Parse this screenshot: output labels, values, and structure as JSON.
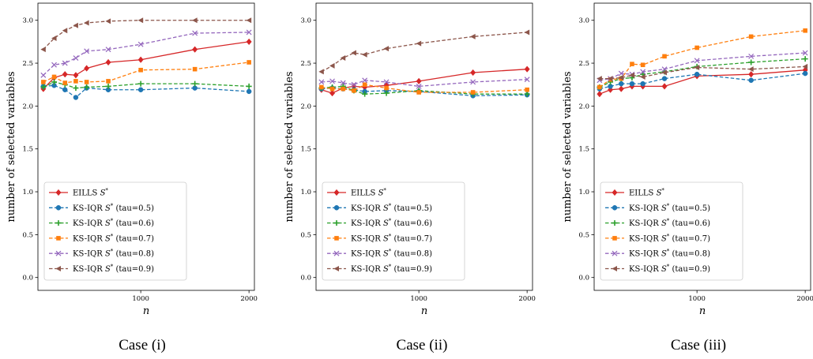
{
  "common": {
    "ylabel": "number of selected variables",
    "xlabel": "n",
    "xticks": [
      1000,
      2000
    ],
    "yticks": [
      "0.0",
      "0.5",
      "1.0",
      "1.5",
      "2.0",
      "2.5",
      "3.0"
    ],
    "legend_prefix": "KS-IQR",
    "colors": {
      "EILLS": "#d62728",
      "tau05": "#1f77b4",
      "tau06": "#2ca02c",
      "tau07": "#ff7f0e",
      "tau08": "#9467bd",
      "tau09": "#8c564b"
    }
  },
  "chart_data": [
    {
      "type": "line",
      "caption": "Case (i)",
      "xlabel": "n",
      "ylabel": "number of selected variables",
      "xlim": [
        50,
        2050
      ],
      "ylim": [
        -0.15,
        3.2
      ],
      "legend_position": "lower-left",
      "x": [
        100,
        200,
        300,
        400,
        500,
        700,
        1000,
        1500,
        2000
      ],
      "series": [
        {
          "name": "EILLS S*",
          "style": "solid",
          "marker": "diamond",
          "color": "#d62728",
          "values": [
            2.2,
            2.33,
            2.37,
            2.36,
            2.44,
            2.51,
            2.54,
            2.66,
            2.75
          ]
        },
        {
          "name": "KS-IQR S* (tau=0.5)",
          "style": "dashed",
          "marker": "circle",
          "color": "#1f77b4",
          "values": [
            2.23,
            2.24,
            2.19,
            2.1,
            2.21,
            2.19,
            2.19,
            2.21,
            2.17
          ]
        },
        {
          "name": "KS-IQR S* (tau=0.6)",
          "style": "dashed",
          "marker": "plus",
          "color": "#2ca02c",
          "values": [
            2.22,
            2.28,
            2.25,
            2.21,
            2.22,
            2.23,
            2.26,
            2.26,
            2.23
          ]
        },
        {
          "name": "KS-IQR S* (tau=0.7)",
          "style": "dashed",
          "marker": "square",
          "color": "#ff7f0e",
          "values": [
            2.28,
            2.34,
            2.27,
            2.29,
            2.28,
            2.29,
            2.42,
            2.43,
            2.51
          ]
        },
        {
          "name": "KS-IQR S* (tau=0.8)",
          "style": "dashed",
          "marker": "x",
          "color": "#9467bd",
          "values": [
            2.36,
            2.48,
            2.5,
            2.56,
            2.64,
            2.66,
            2.72,
            2.85,
            2.86
          ]
        },
        {
          "name": "KS-IQR S* (tau=0.9)",
          "style": "dashed",
          "marker": "triangle-left",
          "color": "#8c564b",
          "values": [
            2.66,
            2.79,
            2.88,
            2.94,
            2.97,
            2.99,
            3.0,
            3.0,
            3.0
          ]
        }
      ]
    },
    {
      "type": "line",
      "caption": "Case (ii)",
      "xlabel": "n",
      "ylabel": "number of selected variables",
      "xlim": [
        50,
        2050
      ],
      "ylim": [
        -0.15,
        3.2
      ],
      "legend_position": "lower-left",
      "x": [
        100,
        200,
        300,
        400,
        500,
        700,
        1000,
        1500,
        2000
      ],
      "series": [
        {
          "name": "EILLS S*",
          "style": "solid",
          "marker": "diamond",
          "color": "#d62728",
          "values": [
            2.19,
            2.15,
            2.21,
            2.23,
            2.22,
            2.24,
            2.29,
            2.39,
            2.43
          ]
        },
        {
          "name": "KS-IQR S* (tau=0.5)",
          "style": "dashed",
          "marker": "circle",
          "color": "#1f77b4",
          "values": [
            2.2,
            2.21,
            2.2,
            2.19,
            2.17,
            2.18,
            2.17,
            2.12,
            2.13
          ]
        },
        {
          "name": "KS-IQR S* (tau=0.6)",
          "style": "dashed",
          "marker": "plus",
          "color": "#2ca02c",
          "values": [
            2.21,
            2.22,
            2.23,
            2.18,
            2.14,
            2.15,
            2.18,
            2.14,
            2.14
          ]
        },
        {
          "name": "KS-IQR S* (tau=0.7)",
          "style": "dashed",
          "marker": "square",
          "color": "#ff7f0e",
          "values": [
            2.22,
            2.2,
            2.2,
            2.18,
            2.25,
            2.21,
            2.16,
            2.16,
            2.19
          ]
        },
        {
          "name": "KS-IQR S* (tau=0.8)",
          "style": "dashed",
          "marker": "x",
          "color": "#9467bd",
          "values": [
            2.28,
            2.29,
            2.27,
            2.25,
            2.3,
            2.28,
            2.23,
            2.28,
            2.31
          ]
        },
        {
          "name": "KS-IQR S* (tau=0.9)",
          "style": "dashed",
          "marker": "triangle-left",
          "color": "#8c564b",
          "values": [
            2.4,
            2.47,
            2.56,
            2.62,
            2.6,
            2.67,
            2.73,
            2.81,
            2.86
          ]
        }
      ]
    },
    {
      "type": "line",
      "caption": "Case (iii)",
      "xlabel": "n",
      "ylabel": "number of selected variables",
      "xlim": [
        50,
        2050
      ],
      "ylim": [
        -0.15,
        3.2
      ],
      "legend_position": "lower-left",
      "x": [
        100,
        200,
        300,
        400,
        500,
        700,
        1000,
        1500,
        2000
      ],
      "series": [
        {
          "name": "EILLS S*",
          "style": "solid",
          "marker": "diamond",
          "color": "#d62728",
          "values": [
            2.14,
            2.19,
            2.2,
            2.23,
            2.23,
            2.23,
            2.35,
            2.37,
            2.42
          ]
        },
        {
          "name": "KS-IQR S* (tau=0.5)",
          "style": "dashed",
          "marker": "circle",
          "color": "#1f77b4",
          "values": [
            2.2,
            2.23,
            2.26,
            2.26,
            2.26,
            2.32,
            2.37,
            2.3,
            2.38
          ]
        },
        {
          "name": "KS-IQR S* (tau=0.6)",
          "style": "dashed",
          "marker": "plus",
          "color": "#2ca02c",
          "values": [
            2.22,
            2.28,
            2.32,
            2.33,
            2.37,
            2.4,
            2.46,
            2.51,
            2.55
          ]
        },
        {
          "name": "KS-IQR S* (tau=0.7)",
          "style": "dashed",
          "marker": "square",
          "color": "#ff7f0e",
          "values": [
            2.22,
            2.31,
            2.32,
            2.49,
            2.48,
            2.58,
            2.68,
            2.81,
            2.88
          ]
        },
        {
          "name": "KS-IQR S* (tau=0.8)",
          "style": "dashed",
          "marker": "x",
          "color": "#9467bd",
          "values": [
            2.3,
            2.32,
            2.38,
            2.37,
            2.4,
            2.43,
            2.53,
            2.58,
            2.62
          ]
        },
        {
          "name": "KS-IQR S* (tau=0.9)",
          "style": "dashed",
          "marker": "triangle-left",
          "color": "#8c564b",
          "values": [
            2.32,
            2.32,
            2.33,
            2.36,
            2.34,
            2.39,
            2.45,
            2.43,
            2.46
          ]
        }
      ]
    }
  ]
}
